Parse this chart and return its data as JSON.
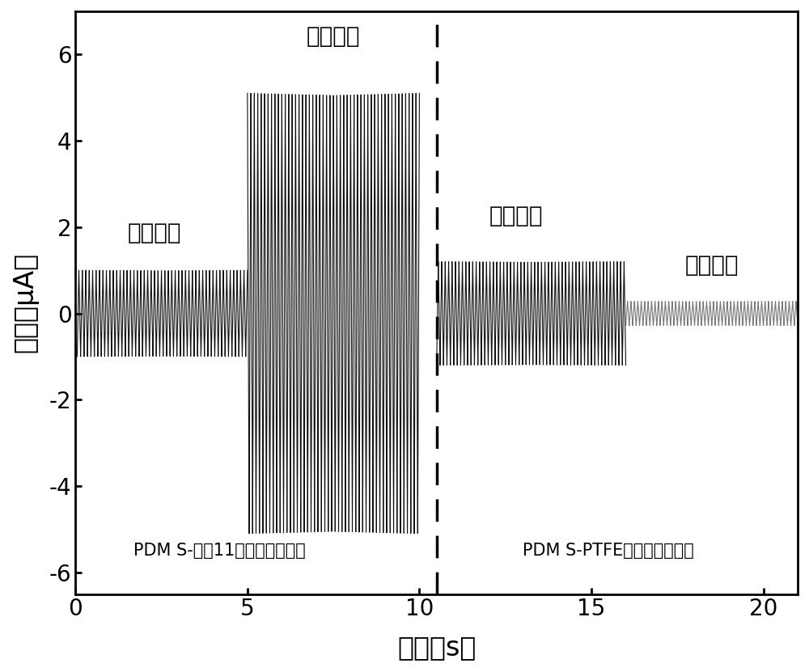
{
  "title": "",
  "xlabel": "时间（s）",
  "ylabel": "电流（μA）",
  "xlim": [
    0,
    21
  ],
  "ylim": [
    -6.5,
    7.0
  ],
  "yticks": [
    -6,
    -4,
    -2,
    0,
    2,
    4,
    6
  ],
  "xticks": [
    0,
    5,
    10,
    15,
    20
  ],
  "divider_x": 10.5,
  "label_ir_off_left": "红外关闭",
  "label_ir_on_left": "红外开启",
  "label_ir_off_right": "红外关闭",
  "label_ir_on_right": "红外开启",
  "label_bottom_left": "PDM S-尼龙11摩擦纳米发电机",
  "label_bottom_right": "PDM S-PTFE摩擦纳米发电机",
  "segments": [
    {
      "start": 0.05,
      "end": 5.0,
      "amplitude": 1.0,
      "freq": 10,
      "color": "#111111",
      "invert": false
    },
    {
      "start": 5.0,
      "end": 10.0,
      "amplitude": 5.1,
      "freq": 10,
      "color": "#111111",
      "invert": true
    },
    {
      "start": 10.5,
      "end": 16.0,
      "amplitude": 1.2,
      "freq": 10,
      "color": "#111111",
      "invert": false
    },
    {
      "start": 16.0,
      "end": 21.0,
      "amplitude": 0.28,
      "freq": 10,
      "color": "#777777",
      "invert": false
    }
  ],
  "background_color": "#ffffff",
  "dashed_line_color": "#000000",
  "font_size_labels": 24,
  "font_size_ticks": 20,
  "font_size_annotations": 20,
  "font_size_bottom": 15
}
